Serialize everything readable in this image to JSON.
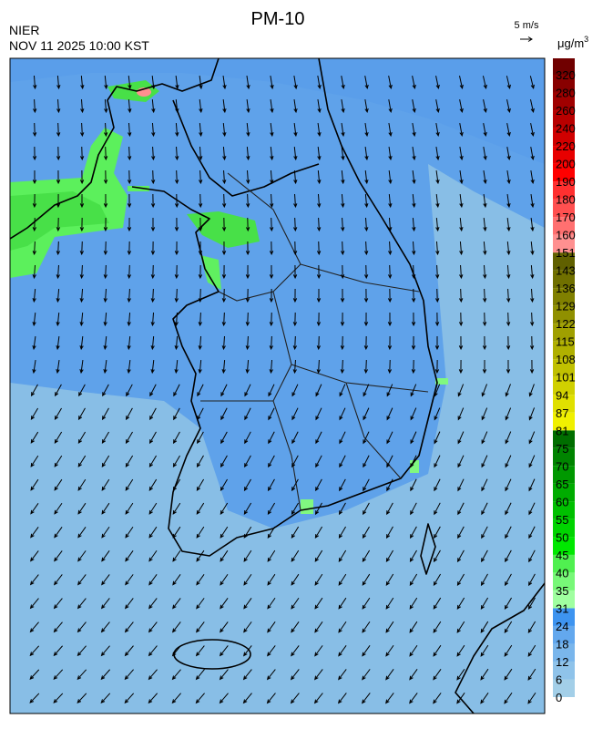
{
  "header": {
    "title": "PM-10",
    "agency": "NIER",
    "datetime": "NOV 11 2025 10:00 KST"
  },
  "wind_scale": {
    "label": "5 m/s"
  },
  "colorbar": {
    "unit": "μg/m",
    "unit_superscript": "3",
    "levels": [
      0,
      6,
      12,
      18,
      24,
      31,
      35,
      40,
      45,
      50,
      55,
      60,
      65,
      70,
      75,
      81,
      87,
      94,
      101,
      108,
      115,
      122,
      129,
      136,
      143,
      151,
      160,
      170,
      180,
      190,
      200,
      220,
      240,
      260,
      280,
      320
    ],
    "colors": [
      "#a3cfe8",
      "#8fc3ea",
      "#7ab6ec",
      "#63a8ee",
      "#3e94f0",
      "#a0ffa0",
      "#78f878",
      "#50f050",
      "#00e800",
      "#00d400",
      "#00c000",
      "#00ac00",
      "#009800",
      "#008400",
      "#006e00",
      "#f0f000",
      "#e0e000",
      "#d0d000",
      "#c0c000",
      "#b0b000",
      "#a0a000",
      "#909000",
      "#808000",
      "#707000",
      "#606000",
      "#ff9090",
      "#ff7070",
      "#ff5050",
      "#ff3030",
      "#ff0000",
      "#e80000",
      "#d00000",
      "#b80000",
      "#a00000",
      "#880000",
      "#700000"
    ]
  }
}
